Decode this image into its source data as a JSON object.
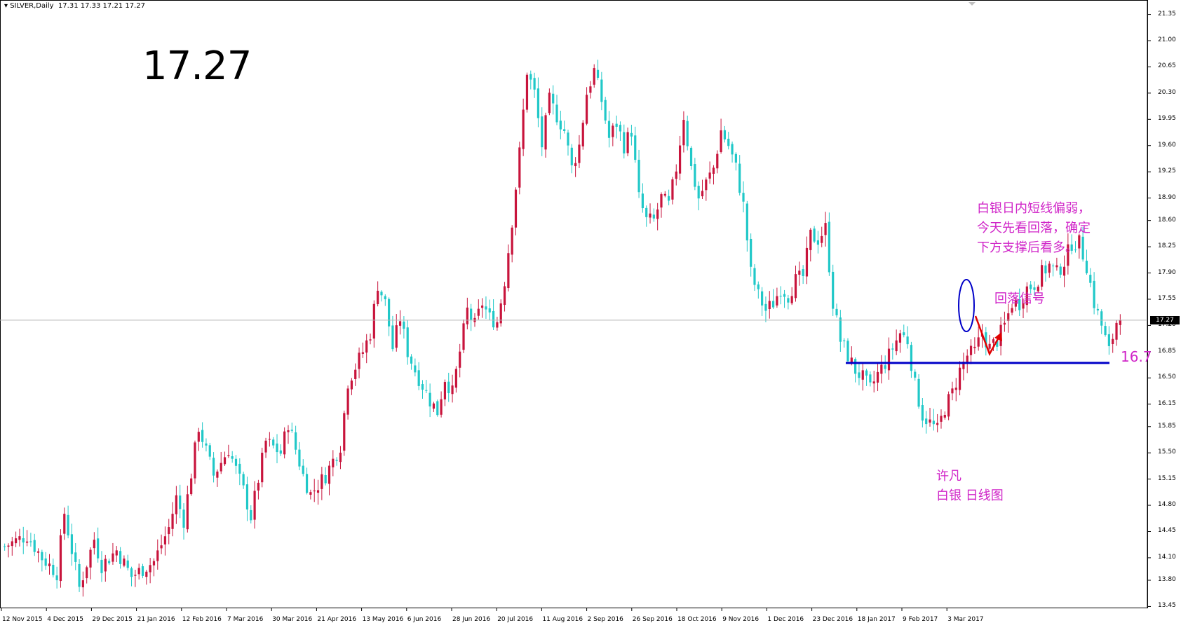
{
  "header": {
    "symbol": "SILVER,Daily",
    "ohlc": "17.31 17.33 17.21 17.27"
  },
  "big_price": "17.27",
  "annotations": {
    "comment_lines": [
      "白银日内短线偏弱，",
      "今天先看回落，确定",
      "下方支撑后看多。"
    ],
    "signal": "回落信号",
    "support_level": "16.7",
    "author_lines": [
      "许凡",
      "白银  日线图"
    ]
  },
  "current_price_label": "17.27",
  "colors": {
    "up": "#c8143c",
    "down": "#20c8c8",
    "annotation": "#d025c8",
    "support_line": "#0000c8",
    "arrow": "#e00000"
  },
  "chart_data": {
    "type": "candlestick",
    "title": "SILVER,Daily",
    "ylim": [
      13.45,
      21.45
    ],
    "y_ticks": [
      "21.35",
      "21.00",
      "20.65",
      "20.30",
      "19.95",
      "19.60",
      "19.25",
      "18.90",
      "18.60",
      "18.25",
      "17.90",
      "17.55",
      "17.20",
      "16.85",
      "16.50",
      "16.15",
      "15.85",
      "15.50",
      "15.15",
      "14.80",
      "14.45",
      "14.10",
      "13.80",
      "13.45"
    ],
    "x_ticks": [
      "12 Nov 2015",
      "4 Dec 2015",
      "29 Dec 2015",
      "21 Jan 2016",
      "12 Feb 2016",
      "7 Mar 2016",
      "30 Mar 2016",
      "21 Apr 2016",
      "13 May 2016",
      "6 Jun 2016",
      "28 Jun 2016",
      "20 Jul 2016",
      "11 Aug 2016",
      "2 Sep 2016",
      "26 Sep 2016",
      "18 Oct 2016",
      "9 Nov 2016",
      "1 Dec 2016",
      "23 Dec 2016",
      "18 Jan 2017",
      "9 Feb 2017",
      "3 Mar 2017"
    ],
    "current_price": 17.27,
    "support": 16.7,
    "path": [
      [
        0,
        14.25
      ],
      [
        6,
        14.4
      ],
      [
        10,
        14.1
      ],
      [
        14,
        13.9
      ],
      [
        16,
        14.7
      ],
      [
        20,
        13.7
      ],
      [
        24,
        14.35
      ],
      [
        26,
        14.0
      ],
      [
        30,
        14.2
      ],
      [
        34,
        13.85
      ],
      [
        40,
        14.05
      ],
      [
        44,
        14.5
      ],
      [
        46,
        14.9
      ],
      [
        48,
        14.6
      ],
      [
        52,
        15.85
      ],
      [
        56,
        15.2
      ],
      [
        60,
        15.55
      ],
      [
        64,
        15.0
      ],
      [
        66,
        14.65
      ],
      [
        70,
        15.65
      ],
      [
        74,
        15.5
      ],
      [
        76,
        15.9
      ],
      [
        80,
        15.2
      ],
      [
        82,
        14.95
      ],
      [
        86,
        15.2
      ],
      [
        90,
        15.6
      ],
      [
        92,
        16.45
      ],
      [
        96,
        16.85
      ],
      [
        98,
        17.1
      ],
      [
        100,
        17.75
      ],
      [
        102,
        17.5
      ],
      [
        104,
        16.9
      ],
      [
        106,
        17.3
      ],
      [
        108,
        16.85
      ],
      [
        110,
        16.6
      ],
      [
        112,
        16.4
      ],
      [
        114,
        16.2
      ],
      [
        116,
        16.05
      ],
      [
        118,
        16.5
      ],
      [
        120,
        16.3
      ],
      [
        124,
        17.4
      ],
      [
        126,
        17.2
      ],
      [
        128,
        17.5
      ],
      [
        130,
        17.3
      ],
      [
        132,
        17.25
      ],
      [
        134,
        17.8
      ],
      [
        136,
        18.6
      ],
      [
        138,
        19.5
      ],
      [
        140,
        20.6
      ],
      [
        142,
        20.3
      ],
      [
        144,
        19.6
      ],
      [
        146,
        20.2
      ],
      [
        148,
        20.0
      ],
      [
        150,
        19.8
      ],
      [
        152,
        19.3
      ],
      [
        154,
        19.6
      ],
      [
        156,
        20.3
      ],
      [
        158,
        20.6
      ],
      [
        160,
        20.2
      ],
      [
        162,
        19.7
      ],
      [
        164,
        19.9
      ],
      [
        166,
        19.6
      ],
      [
        168,
        19.8
      ],
      [
        170,
        18.9
      ],
      [
        172,
        18.6
      ],
      [
        174,
        18.6
      ],
      [
        176,
        18.9
      ],
      [
        178,
        18.8
      ],
      [
        180,
        19.3
      ],
      [
        182,
        20.0
      ],
      [
        184,
        19.3
      ],
      [
        186,
        18.9
      ],
      [
        188,
        19.1
      ],
      [
        190,
        19.3
      ],
      [
        192,
        19.8
      ],
      [
        194,
        19.6
      ],
      [
        196,
        19.3
      ],
      [
        198,
        18.8
      ],
      [
        200,
        17.9
      ],
      [
        202,
        17.6
      ],
      [
        204,
        17.4
      ],
      [
        206,
        17.5
      ],
      [
        208,
        17.7
      ],
      [
        210,
        17.6
      ],
      [
        212,
        17.8
      ],
      [
        214,
        17.85
      ],
      [
        216,
        18.4
      ],
      [
        218,
        18.35
      ],
      [
        220,
        18.5
      ],
      [
        222,
        17.5
      ],
      [
        224,
        17.0
      ],
      [
        226,
        16.8
      ],
      [
        228,
        16.6
      ],
      [
        230,
        16.5
      ],
      [
        232,
        16.35
      ],
      [
        234,
        16.55
      ],
      [
        236,
        16.7
      ],
      [
        238,
        16.9
      ],
      [
        240,
        17.1
      ],
      [
        242,
        17.0
      ],
      [
        244,
        16.4
      ],
      [
        246,
        16.0
      ],
      [
        248,
        15.9
      ],
      [
        250,
        15.8
      ],
      [
        252,
        16.1
      ],
      [
        254,
        16.3
      ],
      [
        256,
        16.6
      ],
      [
        258,
        16.8
      ],
      [
        260,
        16.85
      ],
      [
        262,
        17.1
      ],
      [
        264,
        16.9
      ],
      [
        266,
        17.0
      ],
      [
        268,
        17.2
      ],
      [
        270,
        17.5
      ],
      [
        272,
        17.5
      ],
      [
        274,
        17.7
      ],
      [
        276,
        17.75
      ],
      [
        278,
        17.9
      ],
      [
        280,
        18.0
      ],
      [
        282,
        17.9
      ],
      [
        284,
        18.05
      ],
      [
        286,
        18.3
      ],
      [
        288,
        18.3
      ],
      [
        290,
        18.0
      ],
      [
        292,
        17.5
      ],
      [
        294,
        17.2
      ],
      [
        296,
        16.85
      ],
      [
        298,
        17.25
      ]
    ]
  }
}
